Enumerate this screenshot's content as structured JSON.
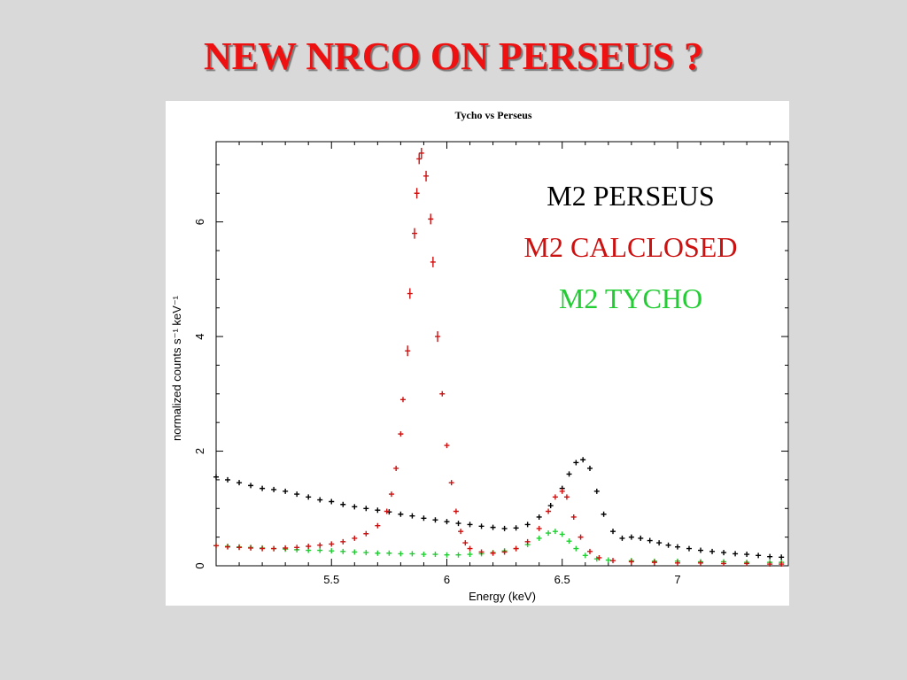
{
  "slide": {
    "title": "NEW NRCO ON PERSEUS ?",
    "title_color": "#ee1111"
  },
  "chart_data": {
    "type": "scatter",
    "title": "Tycho vs Perseus",
    "xlabel": "Energy (keV)",
    "ylabel": "normalized counts s⁻¹ keV⁻¹",
    "xlim": [
      5.0,
      7.48
    ],
    "ylim": [
      0,
      7.4
    ],
    "x_ticks": [
      5.5,
      6,
      6.5,
      7
    ],
    "y_ticks": [
      0,
      2,
      4,
      6
    ],
    "x_tick_labels": [
      "5.5",
      "6",
      "6.5",
      "7"
    ],
    "y_tick_labels": [
      "0",
      "2",
      "4",
      "6"
    ],
    "grid": false,
    "legend_position": "top-right",
    "series": [
      {
        "name": "M2 PERSEUS",
        "color": "#000000",
        "points": [
          [
            5.0,
            1.55
          ],
          [
            5.05,
            1.5
          ],
          [
            5.1,
            1.45
          ],
          [
            5.15,
            1.4
          ],
          [
            5.2,
            1.35
          ],
          [
            5.25,
            1.33
          ],
          [
            5.3,
            1.3
          ],
          [
            5.35,
            1.25
          ],
          [
            5.4,
            1.2
          ],
          [
            5.45,
            1.15
          ],
          [
            5.5,
            1.12
          ],
          [
            5.55,
            1.07
          ],
          [
            5.6,
            1.03
          ],
          [
            5.65,
            1.0
          ],
          [
            5.7,
            0.97
          ],
          [
            5.75,
            0.94
          ],
          [
            5.8,
            0.9
          ],
          [
            5.85,
            0.87
          ],
          [
            5.9,
            0.83
          ],
          [
            5.95,
            0.8
          ],
          [
            6.0,
            0.77
          ],
          [
            6.05,
            0.74
          ],
          [
            6.1,
            0.72
          ],
          [
            6.15,
            0.69
          ],
          [
            6.2,
            0.67
          ],
          [
            6.25,
            0.65
          ],
          [
            6.3,
            0.66
          ],
          [
            6.35,
            0.72
          ],
          [
            6.4,
            0.85
          ],
          [
            6.45,
            1.05
          ],
          [
            6.5,
            1.35
          ],
          [
            6.53,
            1.6
          ],
          [
            6.56,
            1.8
          ],
          [
            6.59,
            1.85
          ],
          [
            6.62,
            1.7
          ],
          [
            6.65,
            1.3
          ],
          [
            6.68,
            0.9
          ],
          [
            6.72,
            0.6
          ],
          [
            6.76,
            0.48
          ],
          [
            6.8,
            0.5
          ],
          [
            6.84,
            0.48
          ],
          [
            6.88,
            0.44
          ],
          [
            6.92,
            0.4
          ],
          [
            6.96,
            0.36
          ],
          [
            7.0,
            0.33
          ],
          [
            7.05,
            0.3
          ],
          [
            7.1,
            0.27
          ],
          [
            7.15,
            0.25
          ],
          [
            7.2,
            0.23
          ],
          [
            7.25,
            0.21
          ],
          [
            7.3,
            0.2
          ],
          [
            7.35,
            0.18
          ],
          [
            7.4,
            0.16
          ],
          [
            7.45,
            0.15
          ]
        ]
      },
      {
        "name": "M2 CALCLOSED",
        "color": "#cc1111",
        "points": [
          [
            5.0,
            0.35
          ],
          [
            5.05,
            0.33
          ],
          [
            5.1,
            0.32
          ],
          [
            5.15,
            0.31
          ],
          [
            5.2,
            0.3
          ],
          [
            5.25,
            0.3
          ],
          [
            5.3,
            0.31
          ],
          [
            5.35,
            0.32
          ],
          [
            5.4,
            0.34
          ],
          [
            5.45,
            0.36
          ],
          [
            5.5,
            0.38
          ],
          [
            5.55,
            0.42
          ],
          [
            5.6,
            0.48
          ],
          [
            5.65,
            0.56
          ],
          [
            5.7,
            0.7
          ],
          [
            5.74,
            0.95
          ],
          [
            5.76,
            1.25
          ],
          [
            5.78,
            1.7
          ],
          [
            5.8,
            2.3
          ],
          [
            5.81,
            2.9
          ],
          [
            5.83,
            3.75
          ],
          [
            5.84,
            4.75
          ],
          [
            5.86,
            5.8
          ],
          [
            5.87,
            6.5
          ],
          [
            5.88,
            7.1
          ],
          [
            5.89,
            7.2
          ],
          [
            5.91,
            6.8
          ],
          [
            5.93,
            6.05
          ],
          [
            5.94,
            5.3
          ],
          [
            5.96,
            4.0
          ],
          [
            5.98,
            3.0
          ],
          [
            6.0,
            2.1
          ],
          [
            6.02,
            1.45
          ],
          [
            6.04,
            0.95
          ],
          [
            6.06,
            0.6
          ],
          [
            6.08,
            0.4
          ],
          [
            6.1,
            0.3
          ],
          [
            6.15,
            0.24
          ],
          [
            6.2,
            0.22
          ],
          [
            6.25,
            0.24
          ],
          [
            6.3,
            0.3
          ],
          [
            6.35,
            0.42
          ],
          [
            6.4,
            0.65
          ],
          [
            6.44,
            0.95
          ],
          [
            6.47,
            1.2
          ],
          [
            6.5,
            1.3
          ],
          [
            6.52,
            1.2
          ],
          [
            6.55,
            0.85
          ],
          [
            6.58,
            0.5
          ],
          [
            6.62,
            0.25
          ],
          [
            6.66,
            0.14
          ],
          [
            6.72,
            0.09
          ],
          [
            6.8,
            0.07
          ],
          [
            6.9,
            0.06
          ],
          [
            7.0,
            0.05
          ],
          [
            7.1,
            0.05
          ],
          [
            7.2,
            0.04
          ],
          [
            7.3,
            0.04
          ],
          [
            7.4,
            0.03
          ],
          [
            7.45,
            0.03
          ]
        ]
      },
      {
        "name": "M2 TYCHO",
        "color": "#22cc33",
        "points": [
          [
            5.0,
            0.35
          ],
          [
            5.05,
            0.34
          ],
          [
            5.1,
            0.33
          ],
          [
            5.15,
            0.32
          ],
          [
            5.2,
            0.31
          ],
          [
            5.25,
            0.3
          ],
          [
            5.3,
            0.29
          ],
          [
            5.35,
            0.28
          ],
          [
            5.4,
            0.27
          ],
          [
            5.45,
            0.27
          ],
          [
            5.5,
            0.26
          ],
          [
            5.55,
            0.25
          ],
          [
            5.6,
            0.24
          ],
          [
            5.65,
            0.23
          ],
          [
            5.7,
            0.22
          ],
          [
            5.75,
            0.22
          ],
          [
            5.8,
            0.21
          ],
          [
            5.85,
            0.21
          ],
          [
            5.9,
            0.2
          ],
          [
            5.95,
            0.2
          ],
          [
            6.0,
            0.19
          ],
          [
            6.05,
            0.19
          ],
          [
            6.1,
            0.2
          ],
          [
            6.15,
            0.21
          ],
          [
            6.2,
            0.23
          ],
          [
            6.25,
            0.26
          ],
          [
            6.3,
            0.3
          ],
          [
            6.35,
            0.37
          ],
          [
            6.4,
            0.48
          ],
          [
            6.44,
            0.57
          ],
          [
            6.47,
            0.6
          ],
          [
            6.5,
            0.55
          ],
          [
            6.53,
            0.43
          ],
          [
            6.56,
            0.3
          ],
          [
            6.6,
            0.18
          ],
          [
            6.65,
            0.12
          ],
          [
            6.7,
            0.1
          ],
          [
            6.8,
            0.09
          ],
          [
            6.9,
            0.08
          ],
          [
            7.0,
            0.08
          ],
          [
            7.1,
            0.07
          ],
          [
            7.2,
            0.07
          ],
          [
            7.3,
            0.06
          ],
          [
            7.4,
            0.06
          ],
          [
            7.45,
            0.06
          ]
        ]
      }
    ]
  }
}
